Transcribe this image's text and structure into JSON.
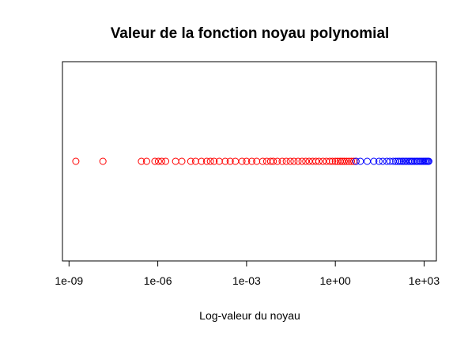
{
  "chart_data": {
    "type": "scatter",
    "title": "Valeur de la fonction noyau polynomial",
    "xlabel": "Log-valeur du noyau",
    "ylabel": "",
    "log_x": true,
    "xlim": [
      6e-10,
      2600.0
    ],
    "x_ticks": [
      1e-09,
      1e-06,
      0.001,
      1.0,
      1000.0
    ],
    "x_tick_labels": [
      "1e-09",
      "1e-06",
      "1e-03",
      "1e+00",
      "1e+03"
    ],
    "grid": false,
    "legend": "none",
    "colors": {
      "red": "#ff0000",
      "blue": "#0000ff",
      "frame": "#000000"
    },
    "series": [
      {
        "color": "#ff0000",
        "x": [
          1.7e-09,
          1.4e-08,
          2.8e-07,
          4.2e-07,
          8e-07,
          1.05e-06,
          1.35e-06,
          1.85e-06,
          4e-06,
          6.5e-06,
          1.3e-05,
          1.9e-05,
          3e-05,
          4.5e-05,
          6e-05,
          8e-05,
          0.00012,
          0.00019,
          0.00028,
          0.00042,
          0.0007,
          0.001,
          0.0015,
          0.0022,
          0.0035,
          0.0048,
          0.0065,
          0.008,
          0.011,
          0.016,
          0.022,
          0.03,
          0.04,
          0.055,
          0.075,
          0.1,
          0.13,
          0.17,
          0.22,
          0.28,
          0.38,
          0.5,
          0.65,
          0.8,
          1.0,
          1.2,
          1.45,
          1.7,
          2.0,
          2.4,
          2.9,
          3.5,
          4.2,
          5.0
        ],
        "y": [
          1,
          1,
          1,
          1,
          1,
          1,
          1,
          1,
          1,
          1,
          1,
          1,
          1,
          1,
          1,
          1,
          1,
          1,
          1,
          1,
          1,
          1,
          1,
          1,
          1,
          1,
          1,
          1,
          1,
          1,
          1,
          1,
          1,
          1,
          1,
          1,
          1,
          1,
          1,
          1,
          1,
          1,
          1,
          1,
          1,
          1,
          1,
          1,
          1,
          1,
          1,
          1,
          1,
          1
        ]
      },
      {
        "color": "#0000ff",
        "x": [
          5,
          7,
          12,
          20,
          30,
          40,
          55,
          70,
          90,
          110,
          130,
          150,
          175,
          200,
          230,
          260,
          300,
          340,
          380,
          420,
          480,
          540,
          600,
          680,
          760,
          850,
          950,
          1050,
          1150,
          1250,
          1350,
          1450
        ],
        "y": [
          1,
          1,
          1,
          1,
          1,
          1,
          1,
          1,
          1,
          1,
          1,
          1,
          1,
          1,
          1,
          1,
          1,
          1,
          1,
          1,
          1,
          1,
          1,
          1,
          1,
          1,
          1,
          1,
          1,
          1,
          1,
          1
        ]
      }
    ]
  }
}
